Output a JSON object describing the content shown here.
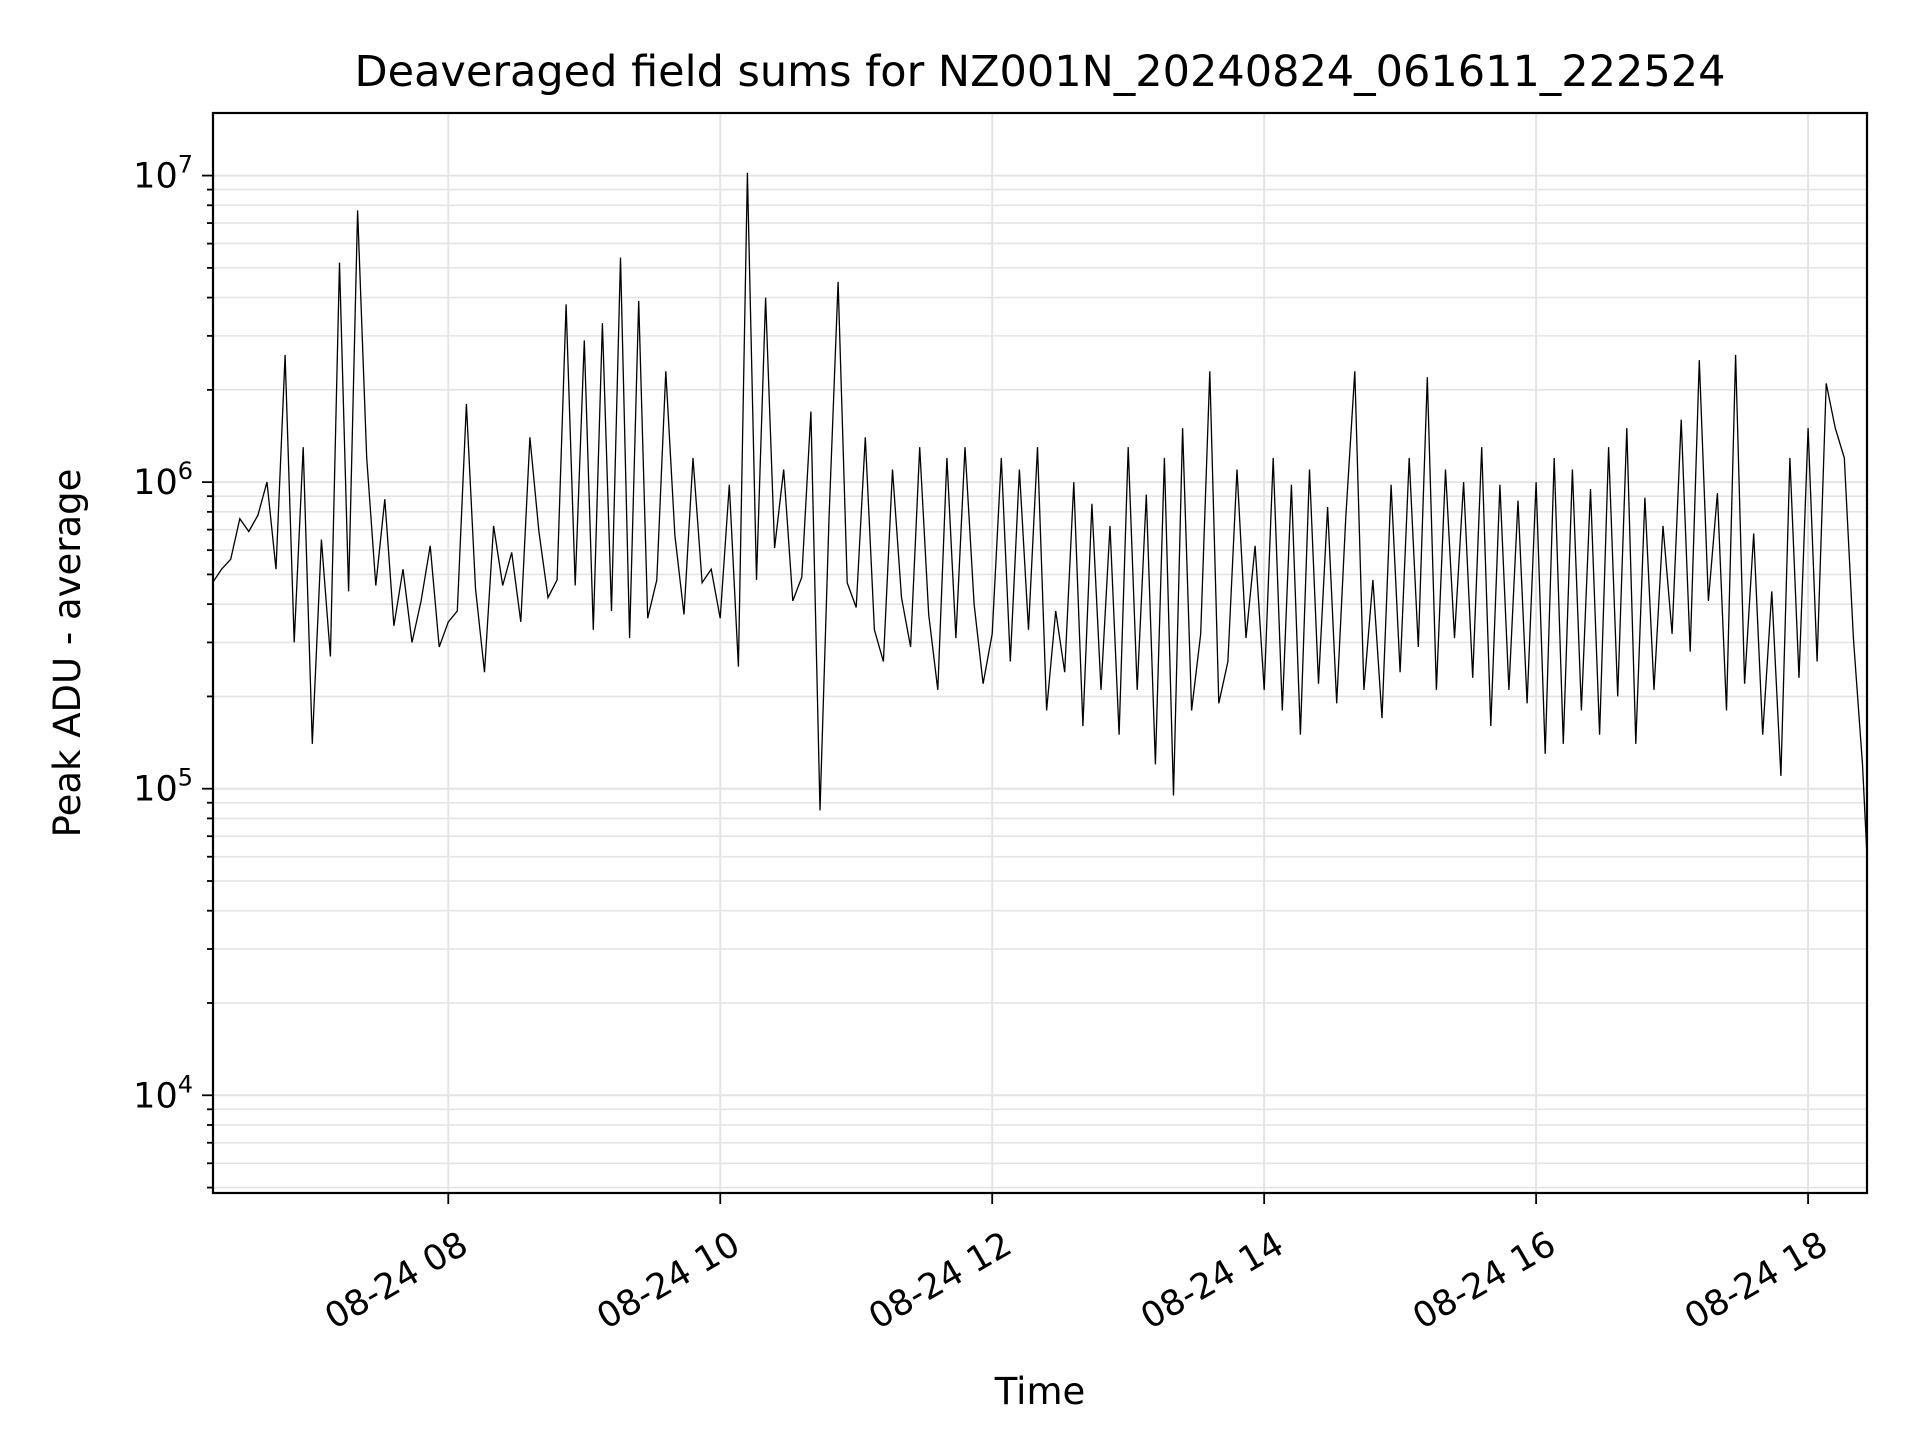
{
  "chart_data": {
    "type": "line",
    "title": "Deaveraged field sums for NZ001N_20240824_061611_222524",
    "xlabel": "Time",
    "ylabel": "Peak ADU - average",
    "yscale": "log",
    "ylim": [
      4800,
      16000000
    ],
    "xlim": [
      "2024-08-24 06:16:11",
      "2024-08-24 18:26:00"
    ],
    "grid": true,
    "x_ticks": [
      {
        "value": "2024-08-24 08:00",
        "label": "08-24 08"
      },
      {
        "value": "2024-08-24 10:00",
        "label": "08-24 10"
      },
      {
        "value": "2024-08-24 12:00",
        "label": "08-24 12"
      },
      {
        "value": "2024-08-24 14:00",
        "label": "08-24 14"
      },
      {
        "value": "2024-08-24 16:00",
        "label": "08-24 16"
      },
      {
        "value": "2024-08-24 18:00",
        "label": "08-24 18"
      }
    ],
    "y_ticks": [
      {
        "value": 10000,
        "base": "10",
        "exp": "4"
      },
      {
        "value": 100000,
        "base": "10",
        "exp": "5"
      },
      {
        "value": 1000000,
        "base": "10",
        "exp": "6"
      },
      {
        "value": 10000000,
        "base": "10",
        "exp": "7"
      }
    ],
    "series": [
      {
        "color": "#000000",
        "x": [
          "2024-08-24 06:16",
          "2024-08-24 06:20",
          "2024-08-24 06:24",
          "2024-08-24 06:28",
          "2024-08-24 06:32",
          "2024-08-24 06:36",
          "2024-08-24 06:40",
          "2024-08-24 06:44",
          "2024-08-24 06:48",
          "2024-08-24 06:52",
          "2024-08-24 06:56",
          "2024-08-24 07:00",
          "2024-08-24 07:04",
          "2024-08-24 07:08",
          "2024-08-24 07:12",
          "2024-08-24 07:16",
          "2024-08-24 07:20",
          "2024-08-24 07:24",
          "2024-08-24 07:28",
          "2024-08-24 07:32",
          "2024-08-24 07:36",
          "2024-08-24 07:40",
          "2024-08-24 07:44",
          "2024-08-24 07:48",
          "2024-08-24 07:52",
          "2024-08-24 07:56",
          "2024-08-24 08:00",
          "2024-08-24 08:04",
          "2024-08-24 08:08",
          "2024-08-24 08:12",
          "2024-08-24 08:16",
          "2024-08-24 08:20",
          "2024-08-24 08:24",
          "2024-08-24 08:28",
          "2024-08-24 08:32",
          "2024-08-24 08:36",
          "2024-08-24 08:40",
          "2024-08-24 08:44",
          "2024-08-24 08:48",
          "2024-08-24 08:52",
          "2024-08-24 08:56",
          "2024-08-24 09:00",
          "2024-08-24 09:04",
          "2024-08-24 09:08",
          "2024-08-24 09:12",
          "2024-08-24 09:16",
          "2024-08-24 09:20",
          "2024-08-24 09:24",
          "2024-08-24 09:28",
          "2024-08-24 09:32",
          "2024-08-24 09:36",
          "2024-08-24 09:40",
          "2024-08-24 09:44",
          "2024-08-24 09:48",
          "2024-08-24 09:52",
          "2024-08-24 09:56",
          "2024-08-24 10:00",
          "2024-08-24 10:04",
          "2024-08-24 10:08",
          "2024-08-24 10:12",
          "2024-08-24 10:16",
          "2024-08-24 10:20",
          "2024-08-24 10:24",
          "2024-08-24 10:28",
          "2024-08-24 10:32",
          "2024-08-24 10:36",
          "2024-08-24 10:40",
          "2024-08-24 10:44",
          "2024-08-24 10:48",
          "2024-08-24 10:52",
          "2024-08-24 10:56",
          "2024-08-24 11:00",
          "2024-08-24 11:04",
          "2024-08-24 11:08",
          "2024-08-24 11:12",
          "2024-08-24 11:16",
          "2024-08-24 11:20",
          "2024-08-24 11:24",
          "2024-08-24 11:28",
          "2024-08-24 11:32",
          "2024-08-24 11:36",
          "2024-08-24 11:40",
          "2024-08-24 11:44",
          "2024-08-24 11:48",
          "2024-08-24 11:52",
          "2024-08-24 11:56",
          "2024-08-24 12:00",
          "2024-08-24 12:04",
          "2024-08-24 12:08",
          "2024-08-24 12:12",
          "2024-08-24 12:16",
          "2024-08-24 12:20",
          "2024-08-24 12:24",
          "2024-08-24 12:28",
          "2024-08-24 12:32",
          "2024-08-24 12:36",
          "2024-08-24 12:40",
          "2024-08-24 12:44",
          "2024-08-24 12:48",
          "2024-08-24 12:52",
          "2024-08-24 12:56",
          "2024-08-24 13:00",
          "2024-08-24 13:04",
          "2024-08-24 13:08",
          "2024-08-24 13:12",
          "2024-08-24 13:16",
          "2024-08-24 13:20",
          "2024-08-24 13:24",
          "2024-08-24 13:28",
          "2024-08-24 13:32",
          "2024-08-24 13:36",
          "2024-08-24 13:40",
          "2024-08-24 13:44",
          "2024-08-24 13:48",
          "2024-08-24 13:52",
          "2024-08-24 13:56",
          "2024-08-24 14:00",
          "2024-08-24 14:04",
          "2024-08-24 14:08",
          "2024-08-24 14:12",
          "2024-08-24 14:16",
          "2024-08-24 14:20",
          "2024-08-24 14:24",
          "2024-08-24 14:28",
          "2024-08-24 14:32",
          "2024-08-24 14:36",
          "2024-08-24 14:40",
          "2024-08-24 14:44",
          "2024-08-24 14:48",
          "2024-08-24 14:52",
          "2024-08-24 14:56",
          "2024-08-24 15:00",
          "2024-08-24 15:04",
          "2024-08-24 15:08",
          "2024-08-24 15:12",
          "2024-08-24 15:16",
          "2024-08-24 15:20",
          "2024-08-24 15:24",
          "2024-08-24 15:28",
          "2024-08-24 15:32",
          "2024-08-24 15:36",
          "2024-08-24 15:40",
          "2024-08-24 15:44",
          "2024-08-24 15:48",
          "2024-08-24 15:52",
          "2024-08-24 15:56",
          "2024-08-24 16:00",
          "2024-08-24 16:04",
          "2024-08-24 16:08",
          "2024-08-24 16:12",
          "2024-08-24 16:16",
          "2024-08-24 16:20",
          "2024-08-24 16:24",
          "2024-08-24 16:28",
          "2024-08-24 16:32",
          "2024-08-24 16:36",
          "2024-08-24 16:40",
          "2024-08-24 16:44",
          "2024-08-24 16:48",
          "2024-08-24 16:52",
          "2024-08-24 16:56",
          "2024-08-24 17:00",
          "2024-08-24 17:04",
          "2024-08-24 17:08",
          "2024-08-24 17:12",
          "2024-08-24 17:16",
          "2024-08-24 17:20",
          "2024-08-24 17:24",
          "2024-08-24 17:28",
          "2024-08-24 17:32",
          "2024-08-24 17:36",
          "2024-08-24 17:40",
          "2024-08-24 17:44",
          "2024-08-24 17:48",
          "2024-08-24 17:52",
          "2024-08-24 17:56",
          "2024-08-24 18:00",
          "2024-08-24 18:04",
          "2024-08-24 18:08",
          "2024-08-24 18:12",
          "2024-08-24 18:16",
          "2024-08-24 18:20",
          "2024-08-24 18:24",
          "2024-08-24 18:26"
        ],
        "y": [
          470000,
          520000,
          560000,
          760000,
          690000,
          780000,
          1000000,
          520000,
          2600000,
          300000,
          1300000,
          140000,
          650000,
          270000,
          5200000,
          440000,
          7700000,
          1200000,
          460000,
          880000,
          340000,
          520000,
          300000,
          410000,
          620000,
          290000,
          350000,
          380000,
          1800000,
          450000,
          240000,
          720000,
          460000,
          590000,
          350000,
          1400000,
          690000,
          420000,
          480000,
          3800000,
          460000,
          2900000,
          330000,
          3300000,
          380000,
          5400000,
          310000,
          3900000,
          360000,
          480000,
          2300000,
          670000,
          370000,
          1200000,
          470000,
          520000,
          360000,
          980000,
          250000,
          10200000,
          480000,
          4000000,
          610000,
          1100000,
          410000,
          490000,
          1700000,
          85000,
          760000,
          4500000,
          470000,
          390000,
          1400000,
          330000,
          260000,
          1100000,
          420000,
          290000,
          1300000,
          370000,
          210000,
          1200000,
          310000,
          1300000,
          400000,
          220000,
          320000,
          1200000,
          260000,
          1100000,
          330000,
          1300000,
          180000,
          380000,
          240000,
          1000000,
          160000,
          850000,
          210000,
          720000,
          150000,
          1300000,
          210000,
          910000,
          120000,
          1200000,
          95000,
          1500000,
          180000,
          320000,
          2300000,
          190000,
          260000,
          1100000,
          310000,
          620000,
          210000,
          1200000,
          180000,
          980000,
          150000,
          1100000,
          220000,
          830000,
          190000,
          760000,
          2300000,
          210000,
          480000,
          170000,
          980000,
          240000,
          1200000,
          290000,
          2200000,
          210000,
          1100000,
          310000,
          1000000,
          230000,
          1300000,
          160000,
          980000,
          210000,
          870000,
          190000,
          1000000,
          130000,
          1200000,
          140000,
          1100000,
          180000,
          950000,
          150000,
          1300000,
          200000,
          1500000,
          140000,
          890000,
          210000,
          720000,
          320000,
          1600000,
          280000,
          2500000,
          410000,
          920000,
          180000,
          2600000,
          220000,
          680000,
          150000,
          440000,
          110000,
          1200000,
          230000,
          1500000,
          260000,
          2100000,
          1500000,
          1200000,
          310000,
          120000,
          60000
        ]
      }
    ]
  }
}
